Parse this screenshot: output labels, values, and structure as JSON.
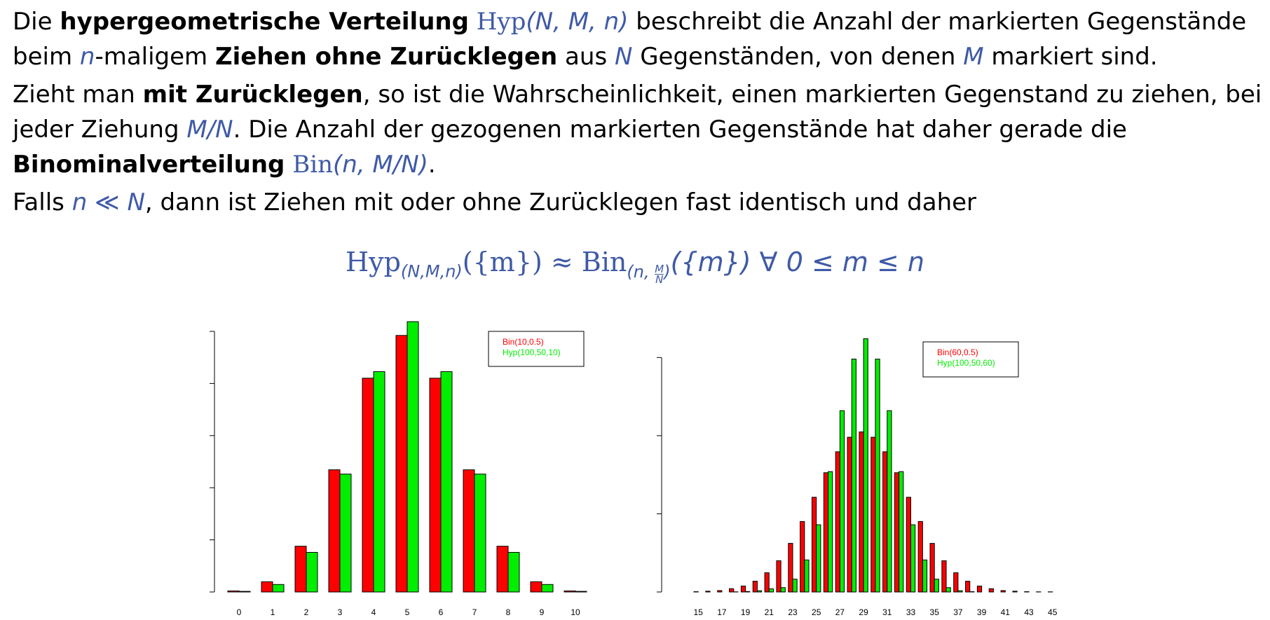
{
  "text": {
    "p1": {
      "a": "Die ",
      "b1": "hypergeometrische Verteilung",
      "hyp": "Hyp",
      "hyp_args": "(N, M, n)",
      "c": " beschreibt die Anzahl der markierten Gegenstände beim ",
      "n": "n",
      "d": "-maligem ",
      "b2": "Ziehen ohne Zurücklegen",
      "e": " aus ",
      "N": "N",
      "f": " Gegenständen, von denen ",
      "M": "M",
      "g": " markiert sind."
    },
    "p2": {
      "a": "Zieht man ",
      "b1": "mit Zurücklegen",
      "c": ", so ist die Wahrscheinlichkeit, einen markierten Gegenstand zu ziehen, bei jeder Ziehung ",
      "mn": "M/N",
      "d": ". Die Anzahl der gezogenen markierten Gegenstände hat daher gerade die ",
      "b2": "Binominalverteilung",
      "bin": "Bin",
      "bin_args": "(n, M/N)",
      "e": "."
    },
    "p3": {
      "a": "Falls ",
      "cond": "n ≪ N",
      "b": ", dann ist Ziehen mit oder ohne Zurücklegen fast identisch und daher"
    }
  },
  "formula": {
    "hyp": "Hyp",
    "hyp_sub": "(N,M,n)",
    "set1": "({m}) ≈ ",
    "bin": "Bin",
    "bin_sub_open": "(n, ",
    "frac_num": "M",
    "frac_den": "N",
    "bin_sub_close": ")",
    "set2": "({m})  ∀ 0 ≤ m ≤ n"
  },
  "colors": {
    "bin": "#ff0000",
    "hyp": "#00ee00",
    "math": "#3f5aa6"
  },
  "chart_data": [
    {
      "type": "bar",
      "categories": [
        "0",
        "1",
        "2",
        "3",
        "4",
        "5",
        "6",
        "7",
        "8",
        "9",
        "10"
      ],
      "series": [
        {
          "name": "Bin(10,0.5)",
          "color": "#ff0000",
          "values": [
            0.001,
            0.0098,
            0.0439,
            0.1172,
            0.2051,
            0.2461,
            0.2051,
            0.1172,
            0.0439,
            0.0098,
            0.001
          ]
        },
        {
          "name": "Hyp(100,50,10)",
          "color": "#00ee00",
          "values": [
            0.0006,
            0.0072,
            0.038,
            0.1131,
            0.2114,
            0.2593,
            0.2114,
            0.1131,
            0.038,
            0.0072,
            0.0006
          ]
        }
      ],
      "ylim": [
        0,
        0.25
      ],
      "yticks": [
        "0.00",
        "0.05",
        "0.10",
        "0.15",
        "0.20",
        "0.25"
      ],
      "xlabel": "",
      "ylabel": "",
      "legend": "top-right"
    },
    {
      "type": "bar",
      "categories": [
        "15",
        "16",
        "17",
        "18",
        "19",
        "20",
        "21",
        "22",
        "23",
        "24",
        "25",
        "26",
        "27",
        "28",
        "29",
        "30",
        "31",
        "32",
        "33",
        "34",
        "35",
        "36",
        "37",
        "38",
        "39",
        "40",
        "41",
        "42",
        "43",
        "44",
        "45"
      ],
      "tick_labels": [
        "15",
        "17",
        "19",
        "21",
        "23",
        "25",
        "27",
        "29",
        "31",
        "33",
        "35",
        "37",
        "39",
        "41",
        "43",
        "45"
      ],
      "series": [
        {
          "name": "Bin(60,0.5)",
          "color": "#ff0000",
          "values": [
            0.0002,
            0.0005,
            0.0009,
            0.0021,
            0.0038,
            0.0069,
            0.0123,
            0.02,
            0.0311,
            0.0451,
            0.0606,
            0.0763,
            0.0897,
            0.099,
            0.1024,
            0.099,
            0.0897,
            0.0763,
            0.0606,
            0.0451,
            0.0311,
            0.02,
            0.0123,
            0.0069,
            0.0038,
            0.0021,
            0.0009,
            0.0005,
            0.0002,
            0.0001,
            0.0001
          ]
        },
        {
          "name": "Hyp(100,50,60)",
          "color": "#00ee00",
          "values": [
            0.0,
            0.0,
            0.0,
            0.0001,
            0.0003,
            0.0008,
            0.002,
            0.0028,
            0.0082,
            0.0205,
            0.043,
            0.077,
            0.116,
            0.149,
            0.162,
            0.149,
            0.116,
            0.077,
            0.043,
            0.0205,
            0.0082,
            0.0028,
            0.0008,
            0.0002,
            0.0,
            0.0,
            0.0,
            0.0,
            0.0,
            0.0,
            0.0
          ]
        }
      ],
      "ylim": [
        0,
        0.16
      ],
      "yticks": [
        "0.00",
        "0.05",
        "0.10",
        "0.15"
      ],
      "xlabel": "",
      "ylabel": "",
      "legend": "top-right"
    }
  ]
}
